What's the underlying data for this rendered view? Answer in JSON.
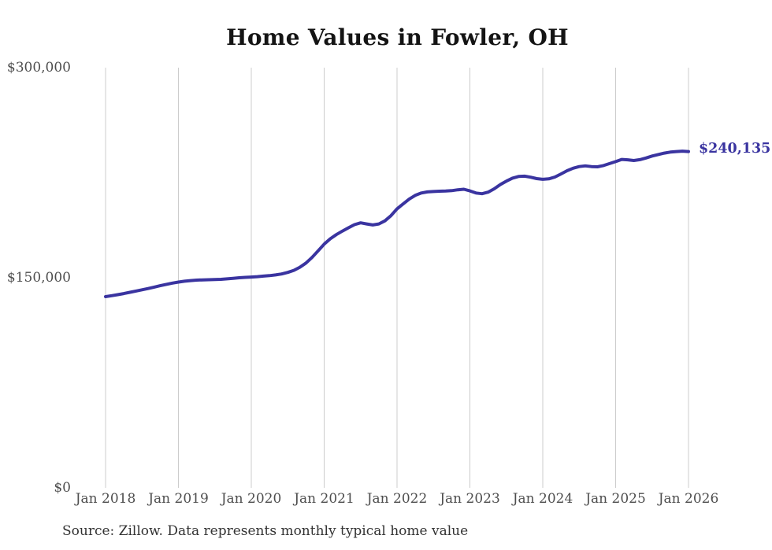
{
  "chart": {
    "title": "Home Values in Fowler, OH",
    "source": "Source: Zillow. Data represents monthly typical home value"
  },
  "chart_data": {
    "type": "line",
    "title": "Home Values in Fowler, OH",
    "xlabel": "",
    "ylabel": "",
    "x_unit": "month",
    "x_start": "2018-01",
    "x_end": "2026-01",
    "ylim": [
      0,
      300000
    ],
    "ytick_values": [
      0,
      150000,
      300000
    ],
    "ytick_labels": [
      "$0",
      "$150,000",
      "$300,000"
    ],
    "xtick_month_indices": [
      0,
      12,
      24,
      36,
      48,
      60,
      72,
      84,
      96
    ],
    "xtick_labels": [
      "Jan 2018",
      "Jan 2019",
      "Jan 2020",
      "Jan 2021",
      "Jan 2022",
      "Jan 2023",
      "Jan 2024",
      "Jan 2025",
      "Jan 2026"
    ],
    "grid": "vertical-only",
    "legend": "none",
    "line_color": "#3a34a0",
    "gridline_color": "#cccccc",
    "end_label": "$240,135",
    "end_value": 240135,
    "series": [
      {
        "name": "Typical home value",
        "values": [
          136500,
          137200,
          137900,
          138700,
          139600,
          140500,
          141400,
          142300,
          143300,
          144300,
          145300,
          146200,
          146900,
          147500,
          148000,
          148300,
          148500,
          148600,
          148700,
          148900,
          149200,
          149600,
          150000,
          150300,
          150500,
          150800,
          151200,
          151500,
          152000,
          152700,
          153800,
          155300,
          157500,
          160500,
          164500,
          169200,
          174000,
          177800,
          180800,
          183300,
          185700,
          187900,
          189200,
          188400,
          187700,
          188400,
          190600,
          194300,
          199200,
          202700,
          206100,
          208800,
          210500,
          211300,
          211600,
          211800,
          211900,
          212200,
          212800,
          213200,
          212000,
          210500,
          210000,
          211100,
          213500,
          216500,
          219000,
          221100,
          222300,
          222500,
          221800,
          220800,
          220300,
          220600,
          221900,
          224100,
          226400,
          228200,
          229400,
          229900,
          229400,
          229200,
          230100,
          231500,
          232900,
          234500,
          234200,
          233700,
          234300,
          235500,
          236900,
          238000,
          239000,
          239700,
          240100,
          240400,
          240135
        ]
      }
    ]
  }
}
